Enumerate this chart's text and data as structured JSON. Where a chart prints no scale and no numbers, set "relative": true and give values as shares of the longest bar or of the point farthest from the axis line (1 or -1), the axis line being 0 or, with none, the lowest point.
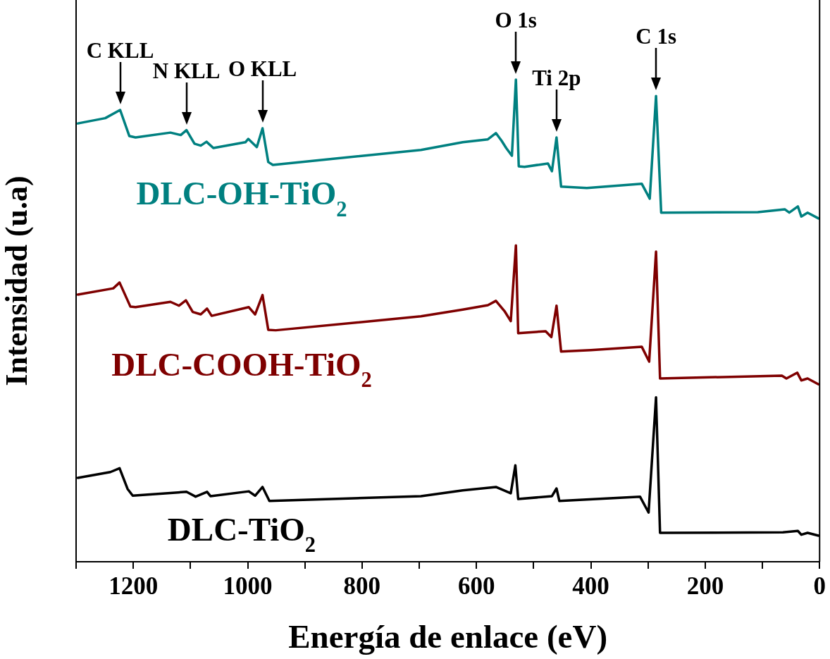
{
  "chart_data": {
    "type": "line",
    "relative": true,
    "xlabel": "Energía de enlace (eV)",
    "ylabel": "Intensidad (u.a)",
    "xlim": [
      1300,
      0
    ],
    "xticks": [
      {
        "value": 1300,
        "label": null
      },
      1200,
      {
        "value": 1100,
        "label": null
      },
      1000,
      {
        "value": 900,
        "label": null
      },
      800,
      {
        "value": 700,
        "label": null
      },
      600,
      {
        "value": 500,
        "label": null
      },
      400,
      {
        "value": 300,
        "label": null
      },
      200,
      {
        "value": 100,
        "label": null
      },
      0
    ],
    "grid": false,
    "legend": false,
    "marker": "none",
    "line_style": "solid",
    "series": [
      {
        "name": "DLC-OH-TiO$_{2}$",
        "color": "#008080",
        "x": [
          1297,
          1249,
          1223,
          1207,
          1196,
          1135,
          1117,
          1107,
          1093,
          1082,
          1072,
          1060,
          1004,
          999,
          984,
          974,
          964,
          956,
          697,
          624,
          580,
          566,
          556,
          548,
          538,
          531,
          526,
          516,
          475,
          468,
          460,
          452,
          407,
          311,
          297,
          286,
          277,
          108,
          61,
          53,
          38,
          32,
          21,
          2
        ],
        "values": [
          0.909,
          0.92,
          0.937,
          0.883,
          0.88,
          0.89,
          0.885,
          0.895,
          0.867,
          0.863,
          0.871,
          0.858,
          0.87,
          0.877,
          0.86,
          0.899,
          0.829,
          0.823,
          0.854,
          0.87,
          0.876,
          0.889,
          0.873,
          0.858,
          0.842,
          1.0,
          0.82,
          0.819,
          0.826,
          0.81,
          0.88,
          0.778,
          0.775,
          0.784,
          0.753,
          0.966,
          0.724,
          0.725,
          0.731,
          0.724,
          0.737,
          0.716,
          0.724,
          0.712
        ]
      },
      {
        "name": "DLC-COOH-TiO$_{2}$",
        "color": "#7f0000",
        "x": [
          1297,
          1235,
          1224,
          1205,
          1196,
          1135,
          1120,
          1108,
          1096,
          1082,
          1071,
          1063,
          998,
          987,
          974,
          964,
          951,
          697,
          624,
          580,
          566,
          551,
          540,
          531,
          527,
          479,
          469,
          460,
          452,
          400,
          311,
          298,
          286,
          279,
          66,
          58,
          39,
          32,
          21,
          2
        ],
        "values": [
          0.554,
          0.567,
          0.579,
          0.529,
          0.528,
          0.539,
          0.531,
          0.542,
          0.518,
          0.513,
          0.525,
          0.51,
          0.528,
          0.513,
          0.553,
          0.481,
          0.48,
          0.509,
          0.523,
          0.532,
          0.541,
          0.52,
          0.499,
          0.656,
          0.474,
          0.478,
          0.466,
          0.531,
          0.436,
          0.439,
          0.446,
          0.415,
          0.643,
          0.38,
          0.386,
          0.38,
          0.392,
          0.376,
          0.38,
          0.368
        ]
      },
      {
        "name": "DLC-TiO$_{2}$",
        "color": "#000000",
        "x": [
          1297,
          1240,
          1224,
          1210,
          1201,
          1107,
          1091,
          1071,
          1065,
          998,
          987,
          974,
          962,
          697,
          624,
          566,
          540,
          532,
          527,
          468,
          460,
          455,
          314,
          299,
          286,
          279,
          64,
          38,
          32,
          21,
          2
        ],
        "values": [
          0.174,
          0.186,
          0.194,
          0.151,
          0.137,
          0.145,
          0.135,
          0.145,
          0.136,
          0.146,
          0.137,
          0.155,
          0.126,
          0.136,
          0.148,
          0.155,
          0.142,
          0.2,
          0.13,
          0.136,
          0.152,
          0.126,
          0.135,
          0.102,
          0.341,
          0.06,
          0.061,
          0.064,
          0.056,
          0.06,
          0.054
        ]
      }
    ],
    "annotations": [
      {
        "text": "C KLL",
        "x": 1223,
        "y": 0.937
      },
      {
        "text": "N KLL",
        "x": 1107,
        "y": 0.895
      },
      {
        "text": "O KLL",
        "x": 974,
        "y": 0.899
      },
      {
        "text": "O 1s",
        "x": 531,
        "y": 1.0
      },
      {
        "text": "Ti 2p",
        "x": 460,
        "y": 0.88
      },
      {
        "text": "C 1s",
        "x": 286,
        "y": 0.966
      }
    ]
  }
}
